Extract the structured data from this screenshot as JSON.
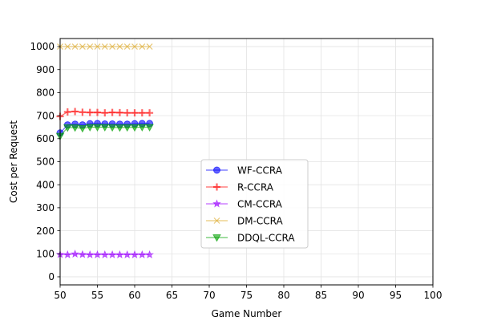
{
  "chart_data": {
    "type": "line",
    "xlabel": "Game Number",
    "ylabel": "Cost per Request",
    "xlim": [
      50,
      100
    ],
    "ylim": [
      -35,
      1035
    ],
    "xticks": [
      50,
      55,
      60,
      65,
      70,
      75,
      80,
      85,
      90,
      95,
      100
    ],
    "yticks": [
      0,
      100,
      200,
      300,
      400,
      500,
      600,
      700,
      800,
      900,
      1000
    ],
    "grid": true,
    "legend_position": "center",
    "x": [
      50,
      51,
      52,
      53,
      54,
      55,
      56,
      57,
      58,
      59,
      60,
      61,
      62
    ],
    "series": [
      {
        "name": "WF-CCRA",
        "color": "#0000ff",
        "marker": "circle",
        "values": [
          625,
          660,
          663,
          660,
          665,
          666,
          664,
          664,
          663,
          663,
          665,
          666,
          666
        ]
      },
      {
        "name": "R-CCRA",
        "color": "#ff0000",
        "marker": "plus",
        "values": [
          697,
          716,
          718,
          715,
          714,
          714,
          712,
          714,
          713,
          712,
          712,
          712,
          712
        ]
      },
      {
        "name": "CM-CCRA",
        "color": "#9b00ff",
        "marker": "star",
        "values": [
          97,
          96,
          99,
          97,
          96,
          96,
          96,
          96,
          96,
          96,
          96,
          96,
          96
        ]
      },
      {
        "name": "DM-CCRA",
        "color": "#daa520",
        "marker": "x",
        "values": [
          1000,
          1000,
          1000,
          1000,
          1000,
          1000,
          1000,
          1000,
          1000,
          1000,
          1000,
          1000,
          1000
        ]
      },
      {
        "name": "DDQL-CCRA",
        "color": "#00a000",
        "marker": "triangle-down",
        "values": [
          611,
          648,
          648,
          645,
          650,
          650,
          650,
          649,
          648,
          649,
          649,
          650,
          650
        ]
      }
    ]
  }
}
